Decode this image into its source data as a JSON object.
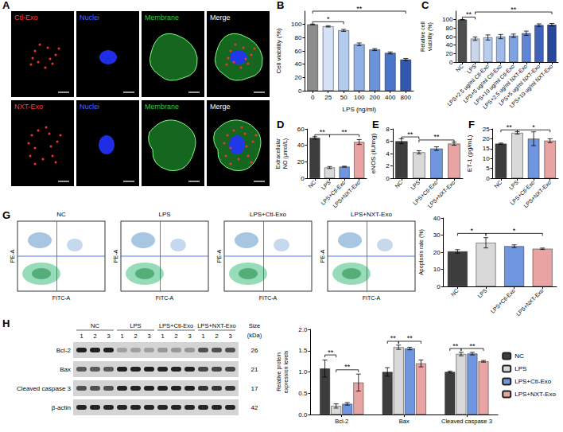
{
  "chart_data": [
    {
      "panel": "B",
      "type": "bar",
      "categories": [
        "0",
        "25",
        "50",
        "100",
        "200",
        "400",
        "800"
      ],
      "values": [
        100,
        97,
        91,
        70,
        62,
        57,
        47
      ],
      "errors": [
        0.5,
        1,
        1.5,
        2,
        1.5,
        1.5,
        1.5
      ],
      "colors": [
        "#8c8c8c",
        "#d6e2f5",
        "#b3cbef",
        "#8fb1e6",
        "#6a93da",
        "#4a75c8",
        "#3158ae"
      ],
      "x_label": "LPS (ng/ml)",
      "y_label": "Cell viability (%)",
      "ylim": [
        0,
        120
      ],
      "yticks": [
        0,
        20,
        40,
        60,
        80,
        100
      ],
      "annotations": [
        {
          "text": "*",
          "from": 0,
          "to": 2,
          "y": 104
        },
        {
          "text": "**",
          "from": 0,
          "to": 6,
          "y": 120
        }
      ]
    },
    {
      "panel": "C",
      "type": "bar",
      "categories": [
        "NC",
        "LPS",
        "LPS+2.5 ug/ml Ctl-Exo",
        "LPS+5 ug/ml Ctl-Exo",
        "LPS+10 ug/ml Ctl-Exo",
        "LPS+2.5 ug/ml NXT-Exo",
        "LPS+5 ug/ml NXT-Exo",
        "LPS+10 ug/ml NXT-Exo"
      ],
      "values": [
        100,
        55,
        58,
        60,
        62,
        68,
        87,
        88
      ],
      "errors": [
        0.5,
        4,
        6,
        5,
        4,
        5,
        3,
        3
      ],
      "colors": [
        "#4d4d4d",
        "#c9d6ec",
        "#b7cdf0",
        "#9dbaea",
        "#7fa2e2",
        "#5f86d6",
        "#3f63bd",
        "#27479e"
      ],
      "y_label": "Relative cell viability (%)",
      "ylim": [
        0,
        120
      ],
      "yticks": [
        0,
        20,
        40,
        60,
        80,
        100
      ],
      "annotations": [
        {
          "text": "**",
          "from": 0,
          "to": 1,
          "y": 106
        },
        {
          "text": "**",
          "from": 1,
          "to": 7,
          "y": 118
        }
      ]
    },
    {
      "panel": "D",
      "type": "bar",
      "categories": [
        "NC",
        "LPS",
        "LPS+Ctl-Exo",
        "LPS+NXT-Exo"
      ],
      "values": [
        49,
        13,
        14,
        44
      ],
      "errors": [
        1.5,
        1.2,
        0.6,
        3
      ],
      "colors": [
        "#3d3d3d",
        "#d9d9d9",
        "#6f96df",
        "#e8a3a3"
      ],
      "y_label": "Extracellular NO (μmol/L)",
      "ylim": [
        0,
        60
      ],
      "yticks": [
        0,
        20,
        40,
        60
      ],
      "annotations": [
        {
          "text": "**",
          "from": 0,
          "to": 1,
          "y": 53
        },
        {
          "text": "**",
          "from": 1,
          "to": 3,
          "y": 53
        }
      ]
    },
    {
      "panel": "E",
      "type": "bar",
      "categories": [
        "NC",
        "LPS",
        "LPS+Ctl-Exo",
        "LPS+NXT-Exo"
      ],
      "values": [
        6.0,
        4.2,
        4.8,
        5.6
      ],
      "errors": [
        0.4,
        0.25,
        0.3,
        0.25
      ],
      "colors": [
        "#3d3d3d",
        "#d9d9d9",
        "#6f96df",
        "#e8a3a3"
      ],
      "y_label": "eNOS (IU/mg)",
      "ylim": [
        0,
        8
      ],
      "yticks": [
        0,
        2,
        4,
        6,
        8
      ],
      "annotations": [
        {
          "text": "**",
          "from": 0,
          "to": 1,
          "y": 6.7
        },
        {
          "text": "**",
          "from": 1,
          "to": 3,
          "y": 6.2
        }
      ]
    },
    {
      "panel": "F",
      "type": "bar",
      "categories": [
        "NC",
        "LPS",
        "LPS+Ctl-Exo",
        "LPS+NXT-Exo"
      ],
      "values": [
        17.5,
        23,
        20,
        19
      ],
      "errors": [
        0.3,
        0.6,
        3.5,
        1
      ],
      "colors": [
        "#3d3d3d",
        "#d9d9d9",
        "#6f96df",
        "#e8a3a3"
      ],
      "y_label": "ET-1 (pg/mL)",
      "ylim": [
        0,
        25
      ],
      "yticks": [
        0,
        5,
        10,
        15,
        20,
        25
      ],
      "annotations": [
        {
          "text": "**",
          "from": 0,
          "to": 1,
          "y": 24.5
        },
        {
          "text": "*",
          "from": 1,
          "to": 3,
          "y": 24.5
        }
      ]
    },
    {
      "type": "bar",
      "categories": [
        "NC",
        "LPS",
        "LPS+Ctl-Exo",
        "LPS+NXT-Exo"
      ],
      "values": [
        20.5,
        25.5,
        23.5,
        22
      ],
      "errors": [
        1,
        3,
        0.8,
        0.4
      ],
      "colors": [
        "#3d3d3d",
        "#d9d9d9",
        "#6f96df",
        "#e8a3a3"
      ],
      "y_label": "Apoptosis rate (%)",
      "ylim": [
        0,
        40
      ],
      "yticks": [
        0,
        10,
        20,
        30,
        40
      ],
      "annotations": [
        {
          "text": "*",
          "from": 0,
          "to": 1,
          "y": 31
        },
        {
          "text": "*",
          "from": 1,
          "to": 3,
          "y": 31
        }
      ]
    },
    {
      "type": "bar",
      "categories": [
        "Bcl-2",
        "Bax",
        "Cleaved caspase 3"
      ],
      "series": [
        {
          "name": "NC",
          "color": "#3d3d3d",
          "values": [
            1.08,
            1.0,
            1.0
          ],
          "errors": [
            0.2,
            0.1,
            0.02
          ]
        },
        {
          "name": "LPS",
          "color": "#d9d9d9",
          "values": [
            0.2,
            1.58,
            1.42
          ],
          "errors": [
            0.05,
            0.05,
            0.04
          ]
        },
        {
          "name": "LPS+Ctl-Exo",
          "color": "#6f96df",
          "values": [
            0.25,
            1.55,
            1.43
          ],
          "errors": [
            0.03,
            0.03,
            0.03
          ]
        },
        {
          "name": "LPS+NXT-Exo",
          "color": "#e8a3a3",
          "values": [
            0.75,
            1.2,
            1.25
          ],
          "errors": [
            0.2,
            0.08,
            0.02
          ]
        }
      ],
      "y_label": "Relative protein expression levels",
      "ylim": [
        0,
        2
      ],
      "yticks": [
        {
          "value": 0,
          "label": "0.0"
        },
        0.5,
        {
          "value": 1,
          "label": "1.0"
        },
        1.5,
        {
          "value": 2,
          "label": "2.0"
        }
      ],
      "legend": "right",
      "annotations": [
        {
          "text": "**",
          "category": 0,
          "from": 0,
          "to": 1,
          "y": 1.4
        },
        {
          "text": "**",
          "category": 0,
          "from": 1,
          "to": 3,
          "y": 1.05
        },
        {
          "text": "**",
          "category": 1,
          "from": 0,
          "to": 1,
          "y": 1.72
        },
        {
          "text": "**",
          "category": 1,
          "from": 1,
          "to": 3,
          "y": 1.72
        },
        {
          "text": "**",
          "category": 2,
          "from": 0,
          "to": 1,
          "y": 1.55
        },
        {
          "text": "**",
          "category": 2,
          "from": 1,
          "to": 3,
          "y": 1.55
        }
      ]
    }
  ],
  "images": [
    {
      "panel": "A",
      "type": "micrographs",
      "rows": [
        [
          "Ctl-Exo",
          "Nuclei",
          "Membrane",
          "Merge"
        ],
        [
          "NXT-Exo",
          "Nuclei",
          "Membrane",
          "Merge"
        ]
      ]
    },
    {
      "panel": "G",
      "type": "flow_cytometry",
      "titles": [
        "NC",
        "LPS",
        "LPS+Ctl-Exo",
        "LPS+NXT-Exo"
      ],
      "x_label": "FITC-A",
      "y_label": "PE-A"
    },
    {
      "panel": "H",
      "type": "western_blot",
      "groups": [
        "NC",
        "LPS",
        "LPS+Ctl-Exo",
        "LPS+NXT-Exo"
      ],
      "lanes": [
        "1",
        "2",
        "3"
      ],
      "proteins": [
        "Bcl-2",
        "Bax",
        "Cleaved caspase 3",
        "β-actin"
      ],
      "sizes": [
        26,
        21,
        17,
        42
      ],
      "size_label": "Size (kDa)"
    }
  ]
}
